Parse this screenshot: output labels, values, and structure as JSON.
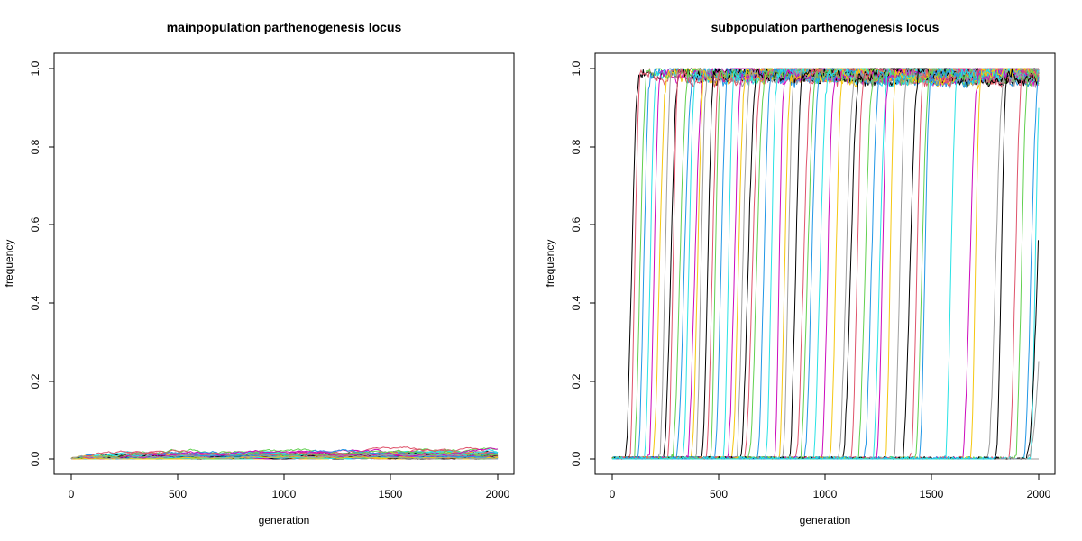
{
  "palette": [
    "#000000",
    "#DF536B",
    "#61D04F",
    "#2297E6",
    "#28E2E5",
    "#CD0BBC",
    "#F5C710",
    "#9E9E9E"
  ],
  "chart_data": [
    {
      "type": "line",
      "title": "mainpopulation parthenogenesis locus",
      "xlabel": "generation",
      "ylabel": "frequency",
      "xlim": [
        0,
        2000
      ],
      "ylim": [
        0,
        1
      ],
      "x_ticks": [
        "0",
        "500",
        "1000",
        "1500",
        "2000"
      ],
      "y_ticks": [
        "0.0",
        "0.2",
        "0.4",
        "0.6",
        "0.8",
        "1.0"
      ],
      "grid": false,
      "legend": "none",
      "series_count": 64,
      "description_values": {
        "generation_range": [
          0,
          2000
        ],
        "frequency_typical_range": [
          0,
          0.055
        ],
        "peak_frequency": 0.058
      }
    },
    {
      "type": "line",
      "title": "subpopulation parthenogenesis locus",
      "xlabel": "generation",
      "ylabel": "frequency",
      "xlim": [
        0,
        2000
      ],
      "ylim": [
        0,
        1
      ],
      "x_ticks": [
        "0",
        "500",
        "1000",
        "1500",
        "2000"
      ],
      "y_ticks": [
        "0.0",
        "0.2",
        "0.4",
        "0.6",
        "0.8",
        "1.0"
      ],
      "grid": false,
      "legend": "none",
      "series_count": 64,
      "sweep_start_generations": [
        60,
        80,
        100,
        120,
        150,
        170,
        190,
        220,
        240,
        260,
        280,
        300,
        330,
        350,
        370,
        390,
        420,
        440,
        460,
        480,
        520,
        540,
        560,
        580,
        600,
        620,
        640,
        680,
        720,
        760,
        780,
        800,
        830,
        860,
        880,
        900,
        940,
        980,
        1020,
        1060,
        1080,
        1120,
        1150,
        1180,
        1220,
        1240,
        1280,
        1320,
        1360,
        1400,
        1420,
        1440,
        1560,
        1640,
        1680,
        1760,
        1800,
        1860,
        1890,
        1930,
        1960
      ],
      "incomplete_sweeps": [
        {
          "start": 1940,
          "end_frequency": 0.6
        },
        {
          "start": 1950,
          "end_frequency": 0.25
        }
      ],
      "plateau_frequency_range": [
        0.93,
        1.0
      ]
    }
  ]
}
